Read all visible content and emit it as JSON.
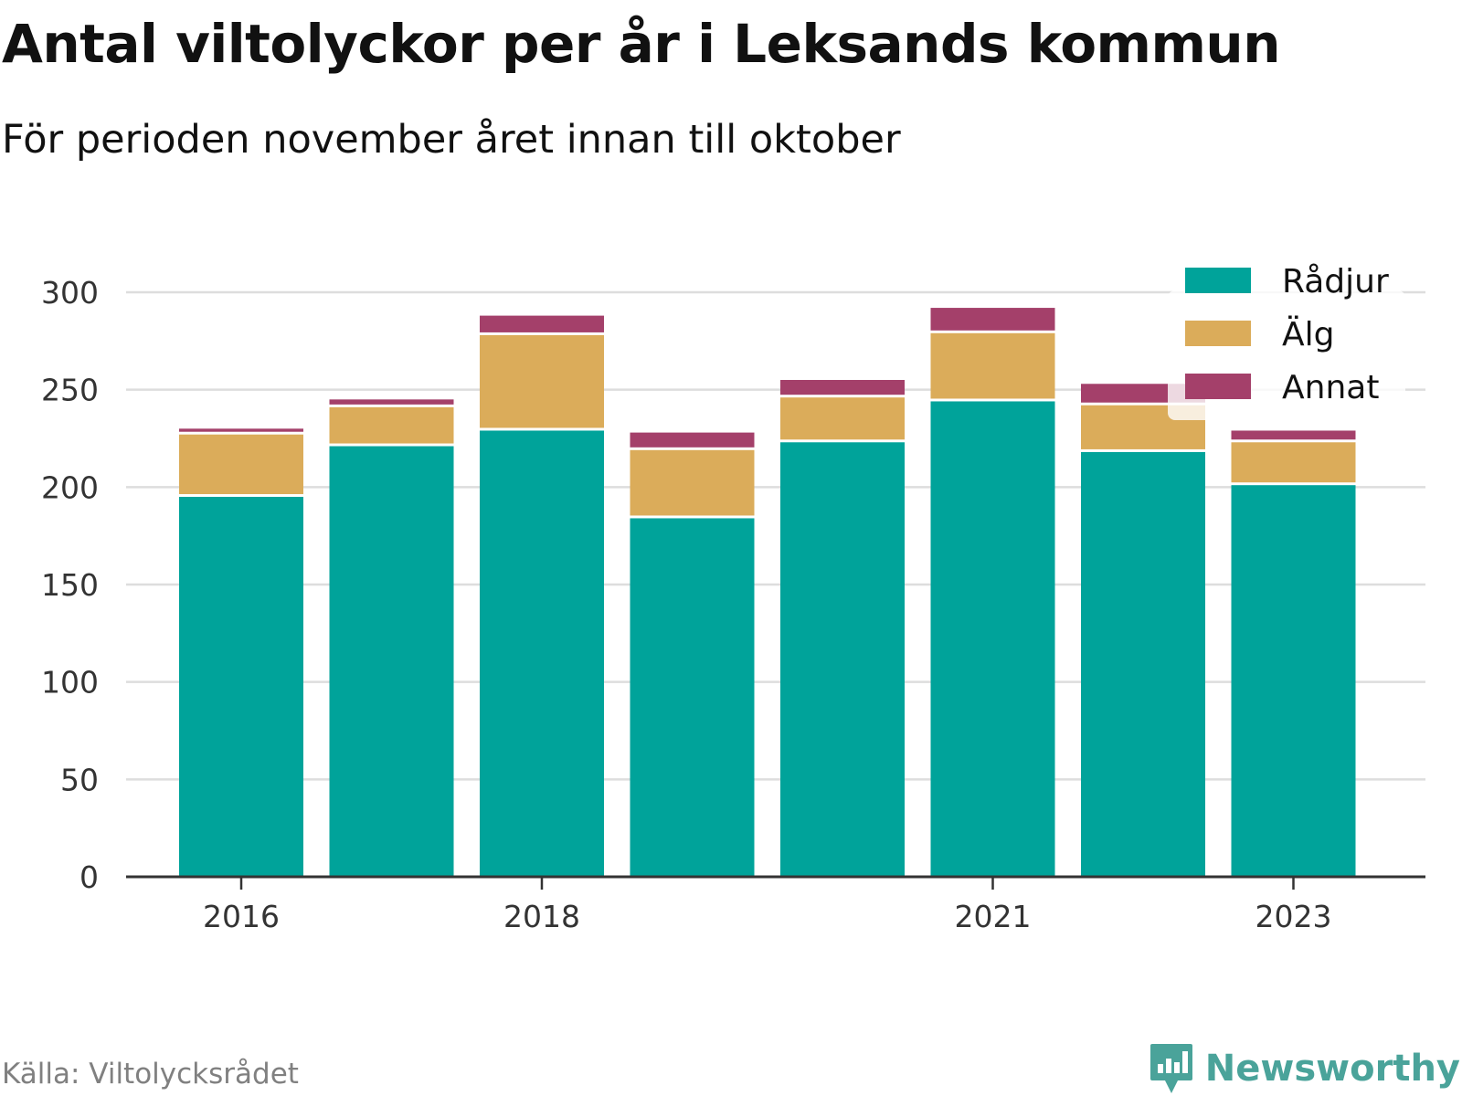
{
  "title": "Antal viltolyckor per år i Leksands kommun",
  "subtitle": "För perioden november året innan till oktober",
  "source": "Källa: Viltolycksrådet",
  "brand": {
    "name": "Newsworthy",
    "icon": "newsworthy-logo-icon",
    "color": "#4aa39a"
  },
  "colors": {
    "radjur": "#00a39a",
    "alg": "#dbac5a",
    "annat": "#a4406a",
    "grid": "#dddddd",
    "axis": "#333333"
  },
  "chart_data": {
    "type": "bar",
    "stacked": true,
    "categories": [
      "2016",
      "2017",
      "2018",
      "2019",
      "2020",
      "2021",
      "2022",
      "2023"
    ],
    "x_tick_labels": [
      "2016",
      "2018",
      "2021",
      "2023"
    ],
    "y_ticks": [
      "0",
      "50",
      "100",
      "150",
      "200",
      "250",
      "300"
    ],
    "ylim": [
      0,
      300
    ],
    "grid": true,
    "legend_position": "top-right",
    "series": [
      {
        "name": "Rådjur",
        "color": "#00a39a",
        "values": [
          195,
          221,
          229,
          184,
          223,
          244,
          218,
          201
        ]
      },
      {
        "name": "Älg",
        "color": "#dbac5a",
        "values": [
          32,
          20,
          49,
          35,
          23,
          35,
          24,
          22
        ]
      },
      {
        "name": "Annat",
        "color": "#a4406a",
        "values": [
          3,
          4,
          10,
          9,
          9,
          13,
          11,
          6
        ]
      }
    ]
  }
}
